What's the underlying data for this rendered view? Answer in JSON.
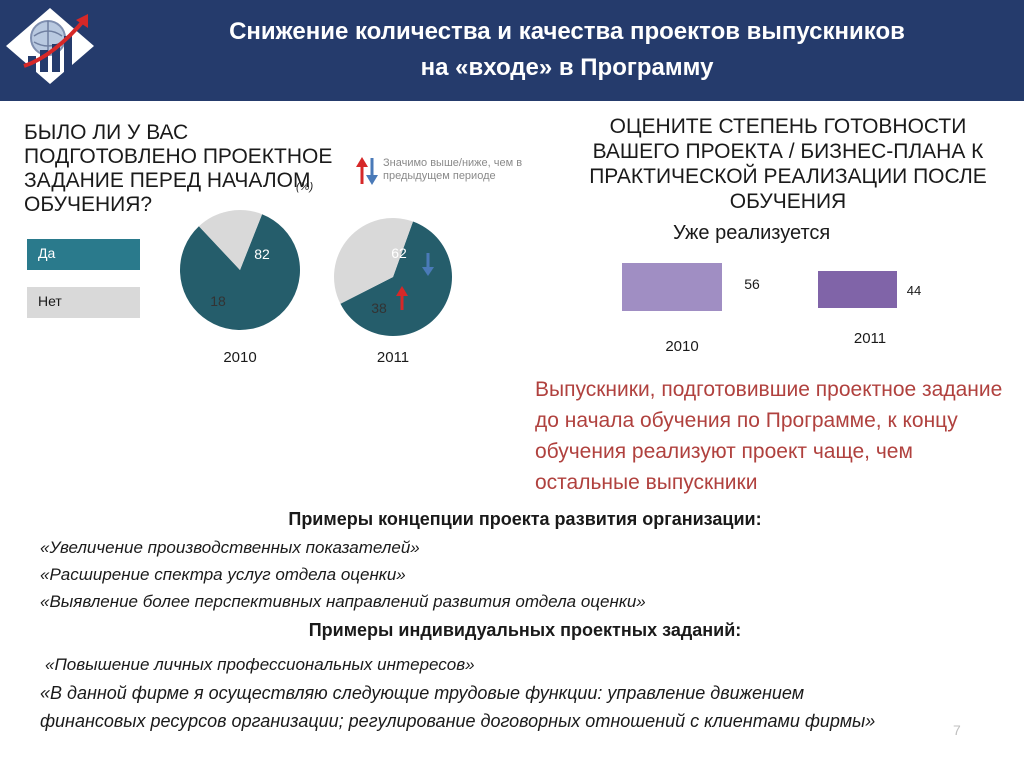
{
  "header": {
    "title_line1": "Снижение количества и качества проектов выпускников",
    "title_line2": "на «входе» в Программу",
    "logo_icon": "growth-chart-logo-icon"
  },
  "left": {
    "question": "БЫЛО ЛИ У ВАС ПОДГОТОВЛЕНО ПРОЕКТНОЕ ЗАДАНИЕ ПЕРЕД НАЧАЛОМ ОБУЧЕНИЯ?",
    "unit": "(%)",
    "significance_note": "Значимо выше/ниже, чем в предыдущем периоде",
    "legend": [
      {
        "label": "Да",
        "color": "#2a7a8c"
      },
      {
        "label": "Нет",
        "color": "#d9d9d9"
      }
    ]
  },
  "right": {
    "question": "ОЦЕНИТЕ СТЕПЕНЬ ГОТОВНОСТИ ВАШЕГО ПРОЕКТА / БИЗНЕС-ПЛАНА К ПРАКТИЧЕСКОЙ РЕАЛИЗАЦИИ ПОСЛЕ ОБУЧЕНИЯ",
    "subtitle": "Уже реализуется",
    "note": "Выпускники, подготовившие проектное задание до начала обучения по Программе, к концу обучения реализуют проект чаще, чем остальные выпускники"
  },
  "chart_data": [
    {
      "type": "pie",
      "categories": [
        "Да",
        "Нет"
      ],
      "series": [
        {
          "name": "2010",
          "values": [
            82,
            18
          ]
        },
        {
          "name": "2011",
          "values": [
            62,
            38
          ]
        }
      ],
      "colors": [
        "#255d6b",
        "#d9d9d9"
      ],
      "significance": {
        "2011": {
          "Да": "lower",
          "Нет": "higher"
        }
      }
    },
    {
      "type": "bar",
      "categories": [
        "2010",
        "2011"
      ],
      "values": [
        56,
        44
      ],
      "colors": [
        "#a08ec3",
        "#8064a8"
      ]
    }
  ],
  "examples": {
    "heading1": "Примеры концепции проекта развития организации:",
    "concept_items": [
      "«Увеличение производственных показателей»",
      "«Расширение спектра услуг отдела оценки»",
      "«Выявление более перспективных направлений развития  отдела оценки»"
    ],
    "heading2": "Примеры индивидуальных проектных заданий:",
    "individual_items": [
      "«Повышение личных профессиональных интересов»",
      "«В данной фирме я осуществляю следующие трудовые функции: управление движением",
      "финансовых ресурсов организации; регулирование договорных отношений с клиентами фирмы»"
    ]
  },
  "page_number": "7"
}
